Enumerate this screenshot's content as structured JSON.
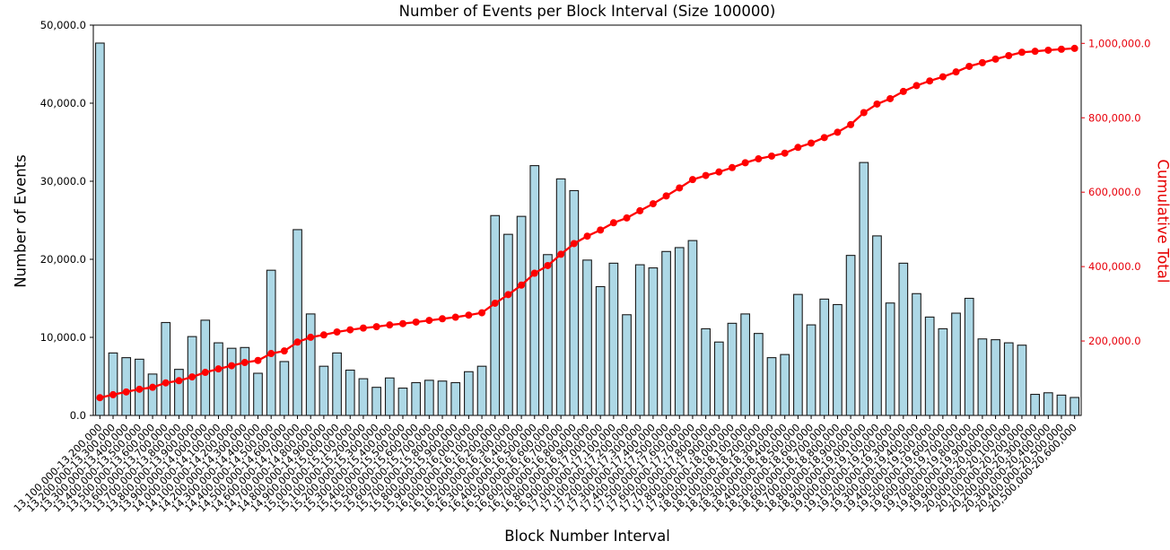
{
  "chart_data": {
    "type": "bar",
    "title": "Number of Events per Block Interval (Size 100000)",
    "xlabel": "Block Number Interval",
    "ylabel_left": "Number of Events",
    "ylabel_right": "Cumulative Total",
    "ylim_left": [
      0,
      50000
    ],
    "ylim_right": [
      0,
      1049000
    ],
    "grid": false,
    "legend": "none",
    "bar_color": "#ADD8E6",
    "bar_edge_color": "#1a1a1a",
    "line_color": "#ff0000",
    "right_axis_text_color": "#e8000b",
    "yticks_left": {
      "values": [
        0,
        10000,
        20000,
        30000,
        40000,
        50000
      ],
      "labels": [
        "0.0",
        "10,000.0",
        "20,000.0",
        "30,000.0",
        "40,000.0",
        "50,000.0"
      ]
    },
    "yticks_right": {
      "values": [
        200000,
        400000,
        600000,
        800000,
        1000000
      ],
      "labels": [
        "200,000.0",
        "400,000.0",
        "600,000.0",
        "800,000.0",
        "1,000,000.0"
      ]
    },
    "categories": [
      "13,100,000-13,200,000",
      "13,200,000-13,300,000",
      "13,300,000-13,400,000",
      "13,400,000-13,500,000",
      "13,500,000-13,600,000",
      "13,600,000-13,700,000",
      "13,700,000-13,800,000",
      "13,800,000-13,900,000",
      "13,900,000-14,000,000",
      "14,000,000-14,100,000",
      "14,100,000-14,200,000",
      "14,200,000-14,300,000",
      "14,300,000-14,400,000",
      "14,400,000-14,500,000",
      "14,500,000-14,600,000",
      "14,600,000-14,700,000",
      "14,700,000-14,800,000",
      "14,800,000-14,900,000",
      "14,900,000-15,000,000",
      "15,000,000-15,100,000",
      "15,100,000-15,200,000",
      "15,200,000-15,300,000",
      "15,300,000-15,400,000",
      "15,400,000-15,500,000",
      "15,500,000-15,600,000",
      "15,600,000-15,700,000",
      "15,700,000-15,800,000",
      "15,800,000-15,900,000",
      "15,900,000-16,000,000",
      "16,000,000-16,100,000",
      "16,100,000-16,200,000",
      "16,200,000-16,300,000",
      "16,300,000-16,400,000",
      "16,400,000-16,500,000",
      "16,500,000-16,600,000",
      "16,600,000-16,700,000",
      "16,700,000-16,800,000",
      "16,800,000-16,900,000",
      "16,900,000-17,000,000",
      "17,000,000-17,100,000",
      "17,100,000-17,200,000",
      "17,200,000-17,300,000",
      "17,300,000-17,400,000",
      "17,400,000-17,500,000",
      "17,500,000-17,600,000",
      "17,600,000-17,700,000",
      "17,700,000-17,800,000",
      "17,800,000-17,900,000",
      "17,900,000-18,000,000",
      "18,000,000-18,100,000",
      "18,100,000-18,200,000",
      "18,200,000-18,300,000",
      "18,300,000-18,400,000",
      "18,400,000-18,500,000",
      "18,500,000-18,600,000",
      "18,600,000-18,700,000",
      "18,700,000-18,800,000",
      "18,800,000-18,900,000",
      "18,900,000-19,000,000",
      "19,000,000-19,100,000",
      "19,100,000-19,200,000",
      "19,200,000-19,300,000",
      "19,300,000-19,400,000",
      "19,400,000-19,500,000",
      "19,500,000-19,600,000",
      "19,600,000-19,700,000",
      "19,700,000-19,800,000",
      "19,800,000-19,900,000",
      "19,900,000-20,000,000",
      "20,000,000-20,100,000",
      "20,100,000-20,200,000",
      "20,200,000-20,300,000",
      "20,300,000-20,400,000",
      "20,400,000-20,500,000",
      "20,500,000-20,600,000"
    ],
    "series": [
      {
        "name": "Number of Events",
        "kind": "bar",
        "axis": "left",
        "values": [
          47700,
          8000,
          7400,
          7200,
          5300,
          11900,
          5900,
          10100,
          12200,
          9300,
          8600,
          8700,
          5400,
          18600,
          6900,
          23800,
          13000,
          6300,
          8000,
          5800,
          4700,
          3600,
          4800,
          3500,
          4200,
          4500,
          4400,
          4200,
          5600,
          6300,
          25600,
          23200,
          25500,
          32000,
          20600,
          30300,
          28800,
          19900,
          16500,
          19500,
          12900,
          19300,
          18900,
          21000,
          21500,
          22400,
          11100,
          9400,
          11800,
          13000,
          10500,
          7400,
          7800,
          15500,
          11600,
          14900,
          14200,
          20500,
          32400,
          23000,
          14400,
          19500,
          15600,
          12600,
          11100,
          13100,
          15000,
          9800,
          9700,
          9300,
          9000,
          2700,
          2900,
          2600,
          2300
        ]
      },
      {
        "name": "Cumulative Total",
        "kind": "line",
        "axis": "right",
        "values": [
          47700,
          55700,
          63100,
          70300,
          75600,
          87500,
          93400,
          103500,
          115700,
          125000,
          133600,
          142300,
          147700,
          166300,
          173200,
          197000,
          210000,
          216300,
          224300,
          230100,
          234800,
          238400,
          243200,
          246700,
          250900,
          255400,
          259800,
          264000,
          269600,
          275900,
          301500,
          324700,
          350200,
          382200,
          402800,
          433100,
          461900,
          481800,
          498300,
          517800,
          530700,
          550000,
          568900,
          589900,
          611400,
          633800,
          644900,
          654300,
          666100,
          679100,
          689600,
          697000,
          704800,
          720300,
          731900,
          746800,
          761000,
          781500,
          813900,
          836900,
          851300,
          870800,
          886400,
          899000,
          910100,
          923200,
          938200,
          948000,
          957700,
          967000,
          976000,
          978700,
          981600,
          984200,
          986500
        ]
      }
    ]
  }
}
